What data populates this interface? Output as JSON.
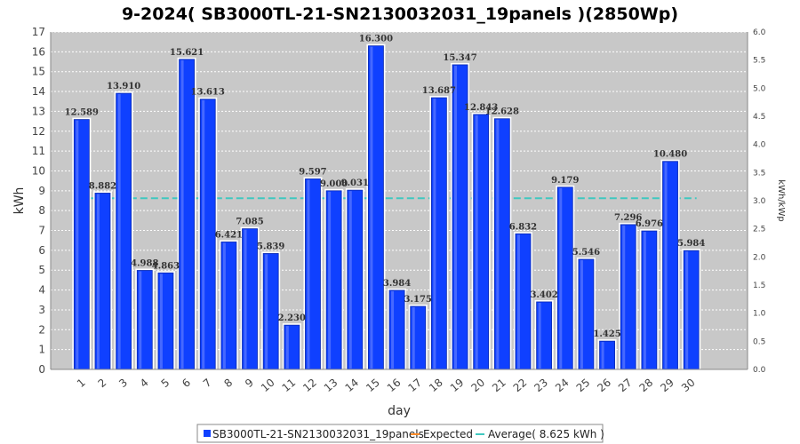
{
  "chart_data": {
    "type": "bar",
    "title": "9-2024( SB3000TL-21-SN2130032031_19panels )(2850Wp)",
    "xlabel": "day",
    "ylabel": "kWh",
    "y2label": "kWh/kWp",
    "ylim": [
      0,
      17
    ],
    "y2lim": [
      0,
      6
    ],
    "yticks": [
      "0",
      "1",
      "2",
      "3",
      "4",
      "5",
      "6",
      "7",
      "8",
      "9",
      "10",
      "11",
      "12",
      "13",
      "14",
      "15",
      "16",
      "17"
    ],
    "y2ticks": [
      "0.0",
      "0.5",
      "1.0",
      "1.5",
      "2.0",
      "2.5",
      "3.0",
      "3.5",
      "4.0",
      "4.5",
      "5.0",
      "5.5",
      "6.0"
    ],
    "categories": [
      "1",
      "2",
      "3",
      "4",
      "5",
      "6",
      "7",
      "8",
      "9",
      "10",
      "11",
      "12",
      "13",
      "14",
      "15",
      "16",
      "17",
      "18",
      "19",
      "20",
      "21",
      "22",
      "23",
      "24",
      "25",
      "26",
      "27",
      "28",
      "29",
      "30"
    ],
    "value_labels": [
      "12.589",
      "8.882",
      "13.910",
      "4.988",
      "4.863",
      "15.621",
      "13.613",
      "6.421",
      "7.085",
      "5.839",
      "2.230",
      "9.597",
      "9.000",
      "9.031",
      "16.300",
      "3.984",
      "3.175",
      "13.687",
      "15.347",
      "12.843",
      "12.628",
      "6.832",
      "3.402",
      "9.179",
      "5.546",
      "1.425",
      "7.296",
      "6.976",
      "10.480",
      "5.984"
    ],
    "series": [
      {
        "name": "SB3000TL-21-SN2130032031_19panels",
        "color": "#0f40ff",
        "values": [
          12.589,
          8.882,
          13.91,
          4.988,
          4.863,
          15.621,
          13.613,
          6.421,
          7.085,
          5.839,
          2.23,
          9.597,
          9.0,
          9.031,
          16.3,
          3.984,
          3.175,
          13.687,
          15.347,
          12.843,
          12.628,
          6.832,
          3.402,
          9.179,
          5.546,
          1.425,
          7.296,
          6.976,
          10.48,
          5.984
        ]
      }
    ],
    "average": {
      "value": 8.625,
      "color": "#40c8c0"
    },
    "grid": true,
    "legend_position": "bottom",
    "legend": [
      {
        "label": "SB3000TL-21-SN2130032031_19panels",
        "color": "#0f40ff",
        "kind": "box"
      },
      {
        "label": "Expected",
        "color": "#ff8c28",
        "kind": "line"
      },
      {
        "label": "Average( 8.625 kWh )",
        "color": "#40c8c0",
        "kind": "line"
      }
    ]
  }
}
